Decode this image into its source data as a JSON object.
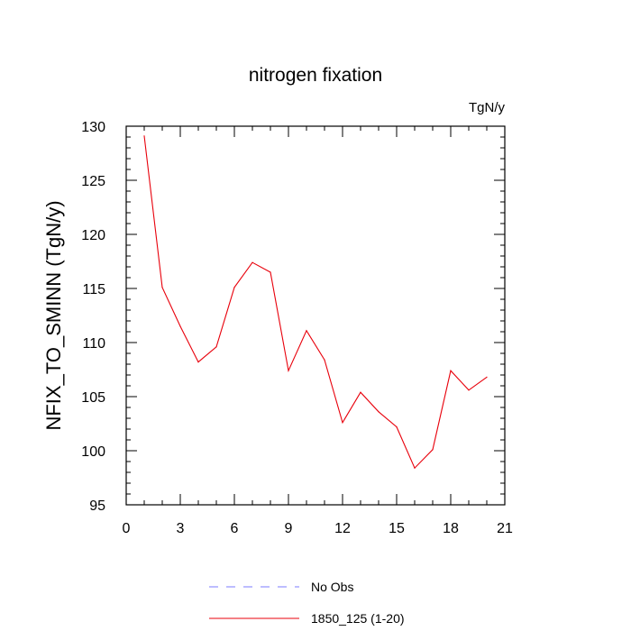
{
  "chart_data": {
    "type": "line",
    "title": "nitrogen fixation",
    "units": "TgN/y",
    "ylabel": "NFIX_TO_SMINN  (TgN/y)",
    "xlabel": "",
    "xlim": [
      0,
      21
    ],
    "ylim": [
      95,
      130
    ],
    "xticks": [
      0,
      3,
      6,
      9,
      12,
      15,
      18,
      21
    ],
    "yticks": [
      95,
      100,
      105,
      110,
      115,
      120,
      125,
      130
    ],
    "grid": false,
    "legend_position": "bottom",
    "series": [
      {
        "name": "1850_125 (1-20)",
        "color": "#e8000b",
        "style": "solid",
        "x": [
          1,
          2,
          3,
          4,
          5,
          6,
          7,
          8,
          9,
          10,
          11,
          12,
          13,
          14,
          15,
          16,
          17,
          18,
          19,
          20
        ],
        "y": [
          129.1,
          115.1,
          111.5,
          108.2,
          109.6,
          115.1,
          117.4,
          116.5,
          107.4,
          111.1,
          108.4,
          102.6,
          105.4,
          103.6,
          102.2,
          98.4,
          100.1,
          107.4,
          105.6,
          106.8
        ]
      }
    ],
    "legend": [
      {
        "label": "No Obs",
        "color": "#7b7bff",
        "style": "dashed"
      },
      {
        "label": "1850_125 (1-20)",
        "color": "#e8000b",
        "style": "solid"
      }
    ]
  }
}
